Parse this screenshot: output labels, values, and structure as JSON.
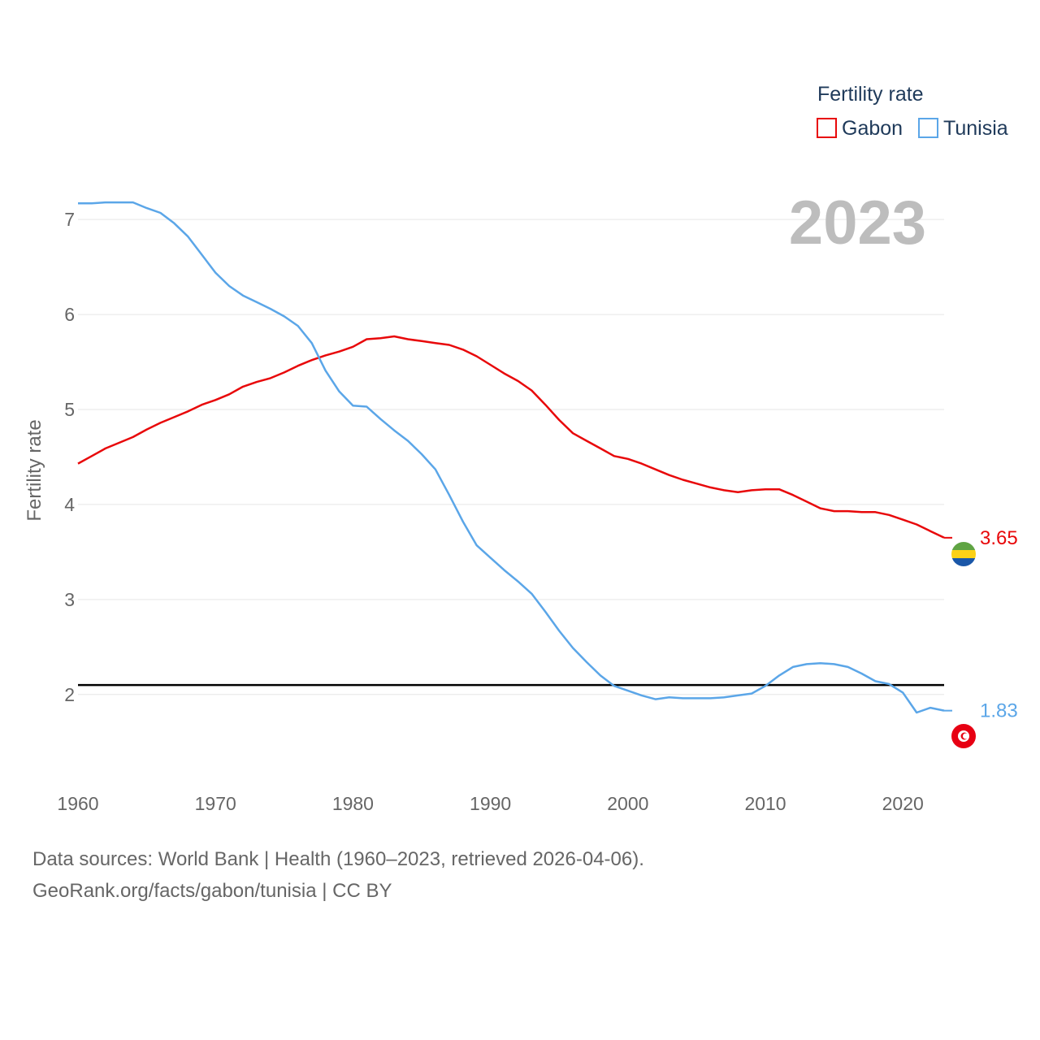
{
  "chart_data": {
    "type": "line",
    "year_label": "2023",
    "ylabel": "Fertility rate",
    "legend_title": "Fertility rate",
    "xlim": [
      1960,
      2023
    ],
    "ylim": [
      1.1,
      7.6
    ],
    "xticks": [
      1960,
      1970,
      1980,
      1990,
      2000,
      2010,
      2020
    ],
    "yticks": [
      2,
      3,
      4,
      5,
      6,
      7
    ],
    "reference_line": 2.1,
    "x": [
      1960,
      1961,
      1962,
      1963,
      1964,
      1965,
      1966,
      1967,
      1968,
      1969,
      1970,
      1971,
      1972,
      1973,
      1974,
      1975,
      1976,
      1977,
      1978,
      1979,
      1980,
      1981,
      1982,
      1983,
      1984,
      1985,
      1986,
      1987,
      1988,
      1989,
      1990,
      1991,
      1992,
      1993,
      1994,
      1995,
      1996,
      1997,
      1998,
      1999,
      2000,
      2001,
      2002,
      2003,
      2004,
      2005,
      2006,
      2007,
      2008,
      2009,
      2010,
      2011,
      2012,
      2013,
      2014,
      2015,
      2016,
      2017,
      2018,
      2019,
      2020,
      2021,
      2022,
      2023
    ],
    "series": [
      {
        "name": "Gabon",
        "color": "#e8080a",
        "end_label": "3.65",
        "values": [
          4.43,
          4.51,
          4.59,
          4.65,
          4.71,
          4.79,
          4.86,
          4.92,
          4.98,
          5.05,
          5.1,
          5.16,
          5.24,
          5.29,
          5.33,
          5.39,
          5.46,
          5.52,
          5.57,
          5.61,
          5.66,
          5.74,
          5.75,
          5.77,
          5.74,
          5.72,
          5.7,
          5.68,
          5.63,
          5.56,
          5.47,
          5.38,
          5.3,
          5.2,
          5.05,
          4.89,
          4.75,
          4.67,
          4.59,
          4.51,
          4.48,
          4.43,
          4.37,
          4.31,
          4.26,
          4.22,
          4.18,
          4.15,
          4.13,
          4.15,
          4.16,
          4.16,
          4.1,
          4.03,
          3.96,
          3.93,
          3.93,
          3.92,
          3.92,
          3.89,
          3.84,
          3.79,
          3.72,
          3.65
        ]
      },
      {
        "name": "Tunisia",
        "color": "#5ba6e8",
        "end_label": "1.83",
        "values": [
          7.17,
          7.17,
          7.18,
          7.18,
          7.18,
          7.12,
          7.07,
          6.96,
          6.82,
          6.63,
          6.44,
          6.3,
          6.2,
          6.13,
          6.06,
          5.98,
          5.88,
          5.7,
          5.41,
          5.19,
          5.04,
          5.03,
          4.9,
          4.78,
          4.67,
          4.53,
          4.37,
          4.1,
          3.82,
          3.57,
          3.44,
          3.31,
          3.19,
          3.06,
          2.87,
          2.67,
          2.49,
          2.34,
          2.2,
          2.09,
          2.04,
          1.99,
          1.95,
          1.97,
          1.96,
          1.96,
          1.96,
          1.97,
          1.99,
          2.01,
          2.09,
          2.2,
          2.29,
          2.32,
          2.33,
          2.32,
          2.29,
          2.22,
          2.14,
          2.11,
          2.02,
          1.81,
          1.86,
          1.83
        ]
      }
    ]
  },
  "footer": {
    "source_line": "Data sources: World Bank | Health (1960–2023, retrieved 2026-04-06).",
    "site_line": "GeoRank.org/facts/gabon/tunisia | CC BY"
  }
}
